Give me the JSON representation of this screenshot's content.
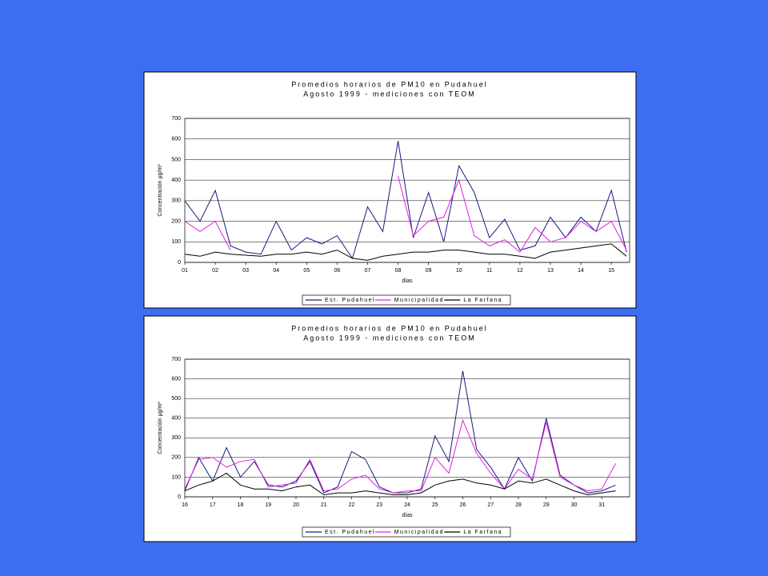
{
  "chart_data": [
    {
      "type": "line",
      "title": "Promedios horarios de PM10 en Pudahuel",
      "subtitle": "Agosto 1999 - mediciones con TEOM",
      "x_label": "días",
      "y_label": "Concentración µg/m³",
      "x": [
        1,
        1.5,
        2,
        2.5,
        3,
        3.5,
        4,
        4.5,
        5,
        5.5,
        6,
        6.5,
        7,
        7.5,
        8,
        8.5,
        9,
        9.5,
        10,
        10.5,
        11,
        11.5,
        12,
        12.5,
        13,
        13.5,
        14,
        14.5,
        15,
        15.5
      ],
      "xlim": [
        1,
        15.6
      ],
      "xticks": [
        {
          "value": 1,
          "label": "01"
        },
        {
          "value": 2,
          "label": "02"
        },
        {
          "value": 3,
          "label": "03"
        },
        {
          "value": 4,
          "label": "04"
        },
        {
          "value": 5,
          "label": "05"
        },
        {
          "value": 6,
          "label": "06"
        },
        {
          "value": 7,
          "label": "07"
        },
        {
          "value": 8,
          "label": "08"
        },
        {
          "value": 9,
          "label": "09"
        },
        10,
        11,
        12,
        13,
        14,
        15
      ],
      "ylim": [
        0,
        700
      ],
      "yticks": [
        0,
        100,
        200,
        300,
        400,
        500,
        600,
        700
      ],
      "grid": true,
      "legend": "bottom",
      "series": [
        {
          "name": "Est. Pudahuel",
          "color": "#1a1a80",
          "values": [
            300,
            200,
            350,
            80,
            50,
            40,
            200,
            60,
            120,
            90,
            130,
            20,
            270,
            150,
            590,
            120,
            340,
            100,
            470,
            340,
            120,
            210,
            60,
            80,
            220,
            120,
            220,
            150,
            350,
            50
          ]
        },
        {
          "name": "Municipalidad",
          "color": "#e020e0",
          "values": [
            200,
            150,
            200,
            60,
            null,
            null,
            null,
            null,
            null,
            null,
            null,
            null,
            null,
            null,
            420,
            130,
            200,
            220,
            400,
            130,
            80,
            110,
            50,
            170,
            100,
            120,
            200,
            150,
            200,
            60
          ]
        },
        {
          "name": "La Farfana",
          "color": "#000000",
          "values": [
            40,
            30,
            50,
            40,
            35,
            30,
            40,
            40,
            50,
            40,
            60,
            20,
            10,
            30,
            40,
            50,
            50,
            60,
            60,
            50,
            40,
            40,
            30,
            20,
            50,
            60,
            70,
            80,
            90,
            30
          ]
        }
      ]
    },
    {
      "type": "line",
      "title": "Promedios horarios de PM10 en Pudahuel",
      "subtitle": "Agosto 1999 - mediciones con TEOM",
      "x_label": "días",
      "y_label": "Concentración µg/m³",
      "x": [
        16,
        16.5,
        17,
        17.5,
        18,
        18.5,
        19,
        19.5,
        20,
        20.5,
        21,
        21.5,
        22,
        22.5,
        23,
        23.5,
        24,
        24.5,
        25,
        25.5,
        26,
        26.5,
        27,
        27.5,
        28,
        28.5,
        29,
        29.5,
        30,
        30.5,
        31,
        31.5
      ],
      "xlim": [
        16,
        32
      ],
      "xticks": [
        16,
        17,
        18,
        19,
        20,
        21,
        22,
        23,
        24,
        25,
        26,
        27,
        28,
        29,
        30,
        31
      ],
      "ylim": [
        0,
        700
      ],
      "yticks": [
        0,
        100,
        200,
        300,
        400,
        500,
        600,
        700
      ],
      "grid": true,
      "legend": "bottom",
      "series": [
        {
          "name": "Est. Pudahuel",
          "color": "#1a1a80",
          "values": [
            30,
            200,
            80,
            250,
            100,
            180,
            60,
            50,
            80,
            180,
            20,
            50,
            230,
            190,
            50,
            20,
            20,
            40,
            310,
            180,
            640,
            240,
            150,
            40,
            200,
            80,
            400,
            110,
            60,
            20,
            30,
            60
          ]
        },
        {
          "name": "Municipalidad",
          "color": "#e020e0",
          "values": [
            40,
            190,
            200,
            150,
            180,
            190,
            50,
            60,
            70,
            190,
            30,
            40,
            90,
            110,
            40,
            20,
            30,
            30,
            200,
            120,
            390,
            220,
            120,
            40,
            140,
            90,
            380,
            100,
            60,
            30,
            40,
            170
          ]
        },
        {
          "name": "La Farfana",
          "color": "#000000",
          "values": [
            30,
            60,
            80,
            120,
            60,
            40,
            40,
            30,
            50,
            60,
            10,
            20,
            20,
            30,
            20,
            10,
            10,
            20,
            60,
            80,
            90,
            70,
            60,
            40,
            80,
            70,
            90,
            60,
            30,
            10,
            20,
            30
          ]
        }
      ]
    }
  ]
}
